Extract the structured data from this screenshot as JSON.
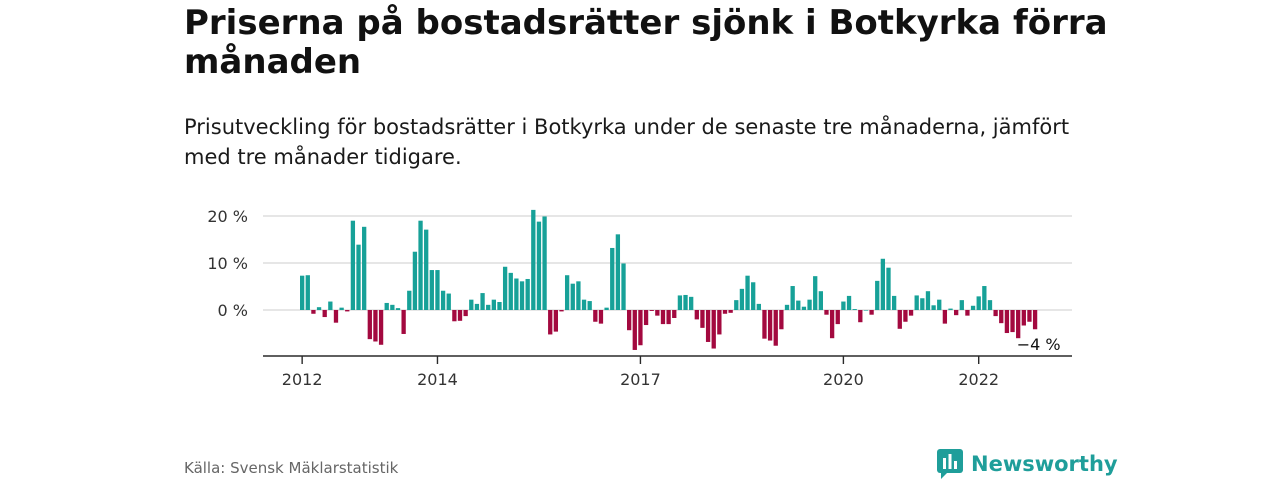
{
  "header": {
    "title": "Priserna på bostadsrätter sjönk i Botkyrka förra månaden",
    "subtitle": "Prisutveckling för bostadsrätter i Botkyrka under de senaste tre månaderna, jämfört med tre månader tidigare."
  },
  "chart_data": {
    "type": "bar",
    "start_month": "2012-01",
    "ylim": [
      -9,
      22
    ],
    "yticks": [
      {
        "value": 0,
        "label": "0 %"
      },
      {
        "value": 10,
        "label": "10 %"
      },
      {
        "value": 20,
        "label": "20 %"
      }
    ],
    "xticks": [
      {
        "label": "2012",
        "month": "2012-01"
      },
      {
        "label": "2014",
        "month": "2014-01"
      },
      {
        "label": "2017",
        "month": "2017-01"
      },
      {
        "label": "2020",
        "month": "2020-01"
      },
      {
        "label": "2022",
        "month": "2022-01"
      }
    ],
    "values": [
      7.3,
      7.4,
      -0.8,
      0.6,
      -1.5,
      1.8,
      -2.7,
      0.5,
      -0.3,
      19,
      13.9,
      17.7,
      -6.2,
      -6.7,
      -7.4,
      1.5,
      1.1,
      0.4,
      -5.1,
      4.1,
      12.4,
      19,
      17.1,
      8.5,
      8.5,
      4.1,
      3.5,
      -2.4,
      -2.3,
      -1.3,
      2.2,
      1.3,
      3.6,
      1.1,
      2.2,
      1.7,
      9.2,
      7.9,
      6.7,
      6.1,
      6.6,
      21.3,
      18.8,
      19.9,
      -5.2,
      -4.6,
      -0.3,
      7.4,
      5.6,
      6.1,
      2.2,
      1.9,
      -2.5,
      -2.9,
      0.5,
      13.2,
      16.1,
      9.9,
      -4.3,
      -8.5,
      -7.5,
      -3.2,
      -0.2,
      -1.2,
      -3,
      -3,
      -1.7,
      3.1,
      3.2,
      2.8,
      -2,
      -3.8,
      -6.8,
      -8.2,
      -5.2,
      -0.8,
      -0.6,
      2.1,
      4.5,
      7.3,
      5.9,
      1.3,
      -6.1,
      -6.5,
      -7.6,
      -4.1,
      1.1,
      5.1,
      2,
      0.7,
      2.2,
      7.2,
      4,
      -1,
      -6,
      -3,
      1.8,
      3,
      0.2,
      -2.6,
      0,
      -1,
      6.2,
      10.9,
      9,
      3,
      -4,
      -2.5,
      -1.2,
      3.1,
      2.5,
      4,
      1,
      2.2,
      -2.9,
      0.3,
      -1.1,
      2.1,
      -1.2,
      0.9,
      2.9,
      5.1,
      2.1,
      -1.3,
      -2.8,
      -4.9,
      -4.7,
      -6,
      -3.3,
      -2.5,
      -4.1
    ],
    "annotations": [
      {
        "text": "−4 %",
        "month": "2022-12"
      }
    ],
    "colors": {
      "positive": "#17a198",
      "negative": "#a3093f",
      "grid": "#d6d6d6",
      "axis": "#2a2a2a"
    }
  },
  "footer": {
    "source": "Källa: Svensk Mäklarstatistik",
    "brand": "Newsworthy",
    "brand_color": "#1f9e9a"
  }
}
